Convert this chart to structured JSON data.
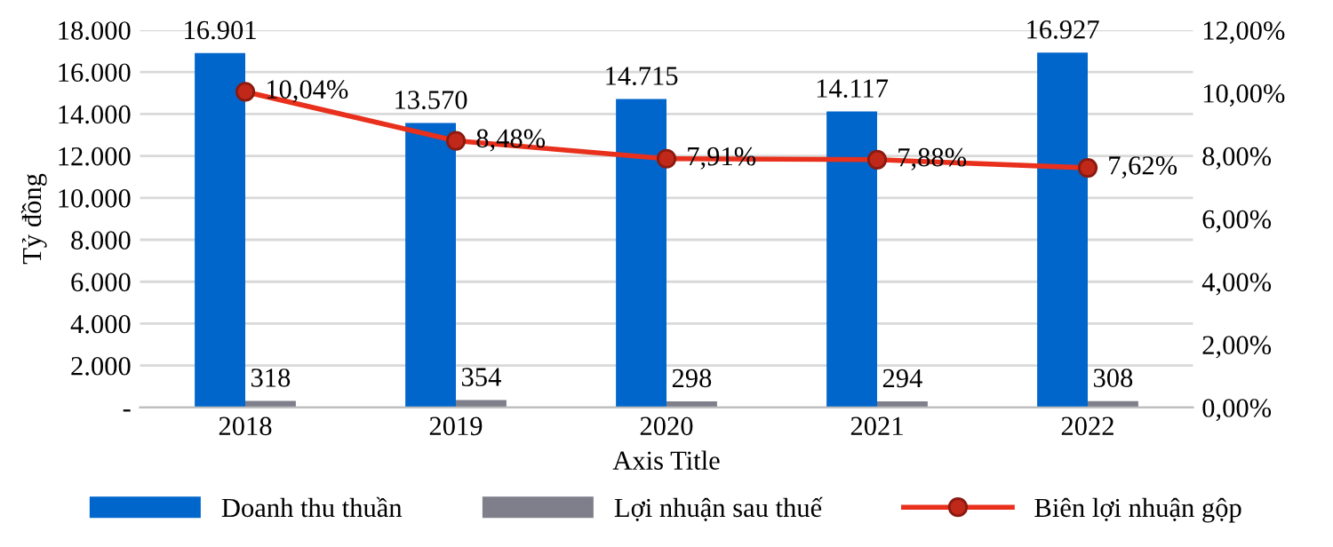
{
  "chart_data": {
    "type": "bar",
    "xlabel": "Axis Title",
    "ylabel": "Tỷ đồng",
    "categories": [
      "2018",
      "2019",
      "2020",
      "2021",
      "2022"
    ],
    "series": [
      {
        "name": "Doanh thu thuần",
        "color": "#0066cc",
        "values": [
          16901,
          13570,
          14715,
          14117,
          16927
        ],
        "value_labels": [
          "16.901",
          "13.570",
          "14.715",
          "14.117",
          "16.927"
        ]
      },
      {
        "name": "Lợi nhuận sau thuế",
        "color": "#7f7f8c",
        "values": [
          318,
          354,
          298,
          294,
          308
        ],
        "value_labels": [
          "318",
          "354",
          "298",
          "294",
          "308"
        ]
      },
      {
        "name": "Biên lợi nhuận gộp",
        "type": "line",
        "axis": "y2",
        "color": "#e8301c",
        "marker": "circle",
        "values": [
          10.04,
          8.48,
          7.91,
          7.88,
          7.62
        ],
        "value_labels": [
          "10,04%",
          "8,48%",
          "7,91%",
          "7,88%",
          "7,62%"
        ]
      }
    ],
    "ylim": [
      0,
      18000
    ],
    "yticks": [
      {
        "value": 0,
        "label": "-"
      },
      {
        "value": 2000,
        "label": "2.000"
      },
      {
        "value": 4000,
        "label": "4.000"
      },
      {
        "value": 6000,
        "label": "6.000"
      },
      {
        "value": 8000,
        "label": "8.000"
      },
      {
        "value": 10000,
        "label": "10.000"
      },
      {
        "value": 12000,
        "label": "12.000"
      },
      {
        "value": 14000,
        "label": "14.000"
      },
      {
        "value": 16000,
        "label": "16.000"
      },
      {
        "value": 18000,
        "label": "18.000"
      }
    ],
    "y2lim": [
      0,
      12
    ],
    "y2ticks": [
      {
        "value": 0,
        "label": "0,00%"
      },
      {
        "value": 2,
        "label": "2,00%"
      },
      {
        "value": 4,
        "label": "4,00%"
      },
      {
        "value": 6,
        "label": "6,00%"
      },
      {
        "value": 8,
        "label": "8,00%"
      },
      {
        "value": 10,
        "label": "10,00%"
      },
      {
        "value": 12,
        "label": "12,00%"
      }
    ],
    "grid": "y",
    "legend": "bottom"
  }
}
